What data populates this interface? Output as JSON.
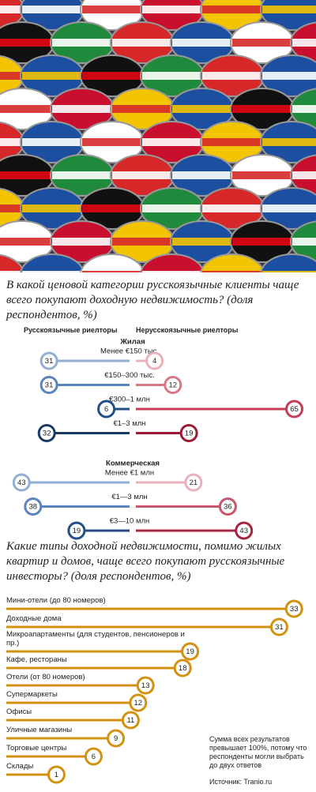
{
  "chart_data": [
    {
      "type": "diverging-bar",
      "title": "В какой ценовой категории русскоязычные клиенты чаще всего покупают доходную недвижимость? (доля респондентов, %)",
      "legend": [
        "Русскоязычные риелторы",
        "Нерусскоязычные риелторы"
      ],
      "sections": [
        {
          "title": "Жилая",
          "categories": [
            "Менее €150 тыс.",
            "€150–300 тыс.",
            "€300–1 млн",
            "€1–3 млн"
          ],
          "series": [
            {
              "colors": [
                "#93aed3",
                "#5a84bd",
                "#244f86",
                "#173a66"
              ],
              "values": [
                31,
                31,
                6,
                32
              ]
            },
            {
              "colors": [
                "#eab0b8",
                "#da7786",
                "#c23d55",
                "#9c1b35"
              ],
              "values": [
                4,
                12,
                65,
                19
              ]
            }
          ]
        },
        {
          "title": "Коммерческая",
          "categories": [
            "Менее €1 млн",
            "€1—3 млн",
            "€3—10 млн"
          ],
          "series": [
            {
              "colors": [
                "#93aed3",
                "#5a84bd",
                "#244f86"
              ],
              "values": [
                43,
                38,
                19
              ]
            },
            {
              "colors": [
                "#eab0b8",
                "#c8566b",
                "#a52440"
              ],
              "values": [
                21,
                36,
                43
              ]
            }
          ]
        }
      ]
    },
    {
      "type": "bar",
      "title": "Какие типы доходной недвижимости, помимо жилых квартир и домов, чаще всего покупают русскоязычные инвесторы? (доля респондентов, %)",
      "categories": [
        "Мини-отели (до 80 номеров)",
        "Доходные дома",
        "Микроапартаменты (для студентов, пенсионеров и пр.)",
        "Кафе, рестораны",
        "Отели (от 80 номеров)",
        "Супермаркеты",
        "Офисы",
        "Уличные магазины",
        "Торговые центры",
        "Склады"
      ],
      "values": [
        33,
        31,
        19,
        18,
        13,
        12,
        11,
        9,
        6,
        1
      ],
      "color": "#d39112",
      "note": "Сумма всех результатов превышает 100%, потому что респонденты могли выбрать до двух ответов",
      "source": "Источник: Tranio.ru"
    }
  ]
}
